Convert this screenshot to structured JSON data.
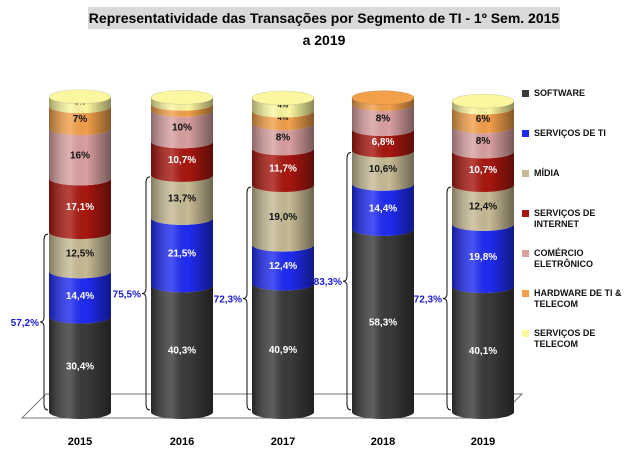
{
  "title": "Representatividade das Transações por Segmento de TI - 1º Sem. 2015 a 2019",
  "legend": [
    {
      "label": "SOFTWARE",
      "color": "#3a3a3a"
    },
    {
      "label": "SERVIÇOS DE TI",
      "color": "#1f2bf2"
    },
    {
      "label": "MÍDIA",
      "color": "#c7bb95"
    },
    {
      "label": "SERVIÇOS DE INTERNET",
      "color": "#a8170f"
    },
    {
      "label": "COMÉRCIO ELETRÔNICO",
      "color": "#d9a0a0"
    },
    {
      "label": "HARDWARE  DE TI & TELECOM",
      "color": "#f2a04a"
    },
    {
      "label": "SERVIÇOS DE TELECOM",
      "color": "#fbf7a0"
    }
  ],
  "chart_data": {
    "type": "bar",
    "stacked": true,
    "title": "Representatividade das Transações por Segmento de TI - 1º Sem. 2015 a 2019",
    "categories": [
      "2015",
      "2016",
      "2017",
      "2018",
      "2019"
    ],
    "series": [
      {
        "name": "SOFTWARE",
        "color": "#3a3a3a",
        "values": [
          30.4,
          40.3,
          40.9,
          58.3,
          40.1
        ],
        "labels": [
          "30,4%",
          "40,3%",
          "40,9%",
          "58,3%",
          "40,1%"
        ],
        "label_color": "#ffffff"
      },
      {
        "name": "SERVIÇOS DE TI",
        "color": "#1f2bf2",
        "values": [
          14.4,
          21.5,
          12.4,
          14.4,
          19.8
        ],
        "labels": [
          "14,4%",
          "21,5%",
          "12,4%",
          "14,4%",
          "19,8%"
        ],
        "label_color": "#ffffff"
      },
      {
        "name": "MÍDIA",
        "color": "#c7bb95",
        "values": [
          12.5,
          13.7,
          19.0,
          10.6,
          12.4
        ],
        "labels": [
          "12,5%",
          "13,7%",
          "19,0%",
          "10,6%",
          "12,4%"
        ],
        "label_color": "#111111"
      },
      {
        "name": "SERVIÇOS DE INTERNET",
        "color": "#a8170f",
        "values": [
          17.1,
          10.7,
          11.7,
          6.8,
          10.7
        ],
        "labels": [
          "17,1%",
          "10,7%",
          "11,7%",
          "6,8%",
          "10,7%"
        ],
        "label_color": "#ffffff"
      },
      {
        "name": "COMÉRCIO ELETRÔNICO",
        "color": "#d9a0a0",
        "values": [
          16,
          10,
          8,
          8,
          8
        ],
        "labels": [
          "16%",
          "10%",
          "8%",
          "8%",
          "8%"
        ],
        "label_color": "#111111"
      },
      {
        "name": "HARDWARE  DE TI & TELECOM",
        "color": "#f2a04a",
        "values": [
          7,
          2,
          4,
          2,
          6
        ],
        "labels": [
          "7%",
          "2%",
          "4%",
          "2%",
          "6%"
        ],
        "label_color": "#111111"
      },
      {
        "name": "SERVIÇOS DE TELECOM",
        "color": "#fbf7a0",
        "values": [
          3,
          2,
          4,
          0,
          2
        ],
        "labels": [
          "3%",
          "2%",
          "4%",
          "0%",
          "2%"
        ],
        "label_color": "#111111"
      }
    ],
    "brackets": [
      {
        "category": "2015",
        "label": "57,2%"
      },
      {
        "category": "2016",
        "label": "75,5%"
      },
      {
        "category": "2017",
        "label": "72,3%"
      },
      {
        "category": "2018",
        "label": "83,3%"
      },
      {
        "category": "2019",
        "label": "72,3%"
      }
    ],
    "ylim": [
      0,
      100
    ],
    "legend_position": "right",
    "grid": false
  }
}
